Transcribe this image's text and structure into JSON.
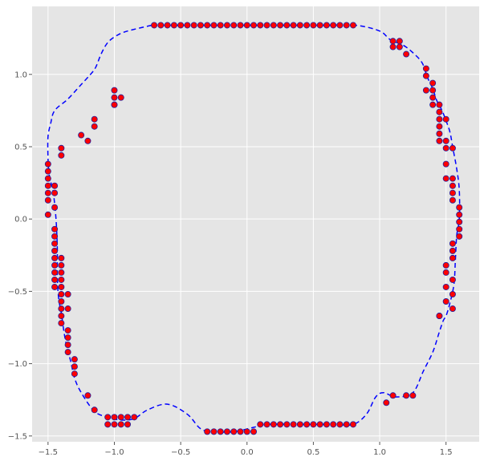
{
  "chart_data": {
    "type": "scatter",
    "title": "",
    "xlabel": "",
    "ylabel": "",
    "xlim": [
      -1.62,
      1.75
    ],
    "ylim": [
      -1.54,
      1.47
    ],
    "xticks": [
      -1.5,
      -1.0,
      -0.5,
      0.0,
      0.5,
      1.0,
      1.5
    ],
    "xtick_labels": [
      "−1.5",
      "−1.0",
      "−0.5",
      "0.0",
      "0.5",
      "1.0",
      "1.5"
    ],
    "yticks": [
      -1.5,
      -1.0,
      -0.5,
      0.0,
      0.5,
      1.0
    ],
    "ytick_labels": [
      "−1.5",
      "−1.0",
      "−0.5",
      "0.0",
      "0.5",
      "1.0"
    ],
    "grid": true,
    "legend": "none",
    "style": {
      "background": "#e5e5e5",
      "grid_color": "#ffffff",
      "point_color": "#ff0000",
      "point_edge_color": "#1f1f9f",
      "curve_color": "#0000ff",
      "curve_style": "dashed"
    },
    "series": [
      {
        "kind": "points",
        "x": [
          -0.7,
          -0.65,
          -0.6,
          -0.55,
          -0.5,
          -0.45,
          -0.4,
          -0.35,
          -0.3,
          -0.25,
          -0.2,
          -0.15,
          -0.1,
          -0.05,
          0.0,
          0.05,
          0.1,
          0.15,
          0.2,
          0.25,
          0.3,
          0.35,
          0.4,
          0.45,
          0.5,
          0.55,
          0.6,
          0.65,
          0.7,
          0.75,
          0.8,
          1.1,
          1.15,
          1.1,
          1.15,
          1.2,
          1.35,
          1.35,
          1.4,
          1.35,
          1.4,
          1.4,
          1.45,
          1.4,
          1.45,
          1.45,
          1.5,
          1.45,
          1.45,
          1.45,
          1.5,
          1.5,
          1.55,
          1.5,
          1.55,
          1.5,
          1.55,
          1.55,
          1.55,
          1.6,
          1.6,
          1.6,
          1.6,
          1.6,
          1.55,
          1.55,
          1.55,
          1.5,
          1.5,
          1.55,
          1.5,
          1.55,
          1.5,
          1.55,
          1.45,
          1.45,
          1.25,
          1.2,
          1.1,
          1.05,
          0.8,
          0.75,
          0.7,
          0.65,
          0.6,
          0.55,
          0.5,
          0.45,
          0.4,
          0.35,
          0.3,
          0.25,
          0.2,
          0.15,
          0.1,
          0.05,
          0.0,
          -0.05,
          -0.1,
          -0.15,
          -0.2,
          -0.25,
          -0.3,
          -0.85,
          -0.9,
          -0.95,
          -0.9,
          -0.95,
          -1.0,
          -1.05,
          -1.0,
          -1.05,
          -1.15,
          -1.2,
          -1.3,
          -1.3,
          -1.3,
          -1.35,
          -1.35,
          -1.35,
          -1.35,
          -1.4,
          -1.4,
          -1.35,
          -1.4,
          -1.4,
          -1.35,
          -1.4,
          -1.4,
          -1.45,
          -1.4,
          -1.45,
          -1.4,
          -1.45,
          -1.4,
          -1.45,
          -1.4,
          -1.45,
          -1.45,
          -1.45,
          -1.45,
          -1.45,
          -1.5,
          -1.45,
          -1.5,
          -1.45,
          -1.5,
          -1.45,
          -1.5,
          -1.5,
          -1.5,
          -1.5,
          -1.4,
          -1.4,
          -1.2,
          -1.25,
          -1.15,
          -1.15,
          -1.0,
          -1.0,
          -1.0,
          -0.95,
          -1.0
        ],
        "y": [
          1.34,
          1.34,
          1.34,
          1.34,
          1.34,
          1.34,
          1.34,
          1.34,
          1.34,
          1.34,
          1.34,
          1.34,
          1.34,
          1.34,
          1.34,
          1.34,
          1.34,
          1.34,
          1.34,
          1.34,
          1.34,
          1.34,
          1.34,
          1.34,
          1.34,
          1.34,
          1.34,
          1.34,
          1.34,
          1.34,
          1.34,
          1.23,
          1.23,
          1.19,
          1.19,
          1.14,
          1.04,
          0.99,
          0.94,
          0.89,
          0.89,
          0.84,
          0.79,
          0.79,
          0.74,
          0.69,
          0.69,
          0.64,
          0.59,
          0.54,
          0.54,
          0.49,
          0.49,
          0.38,
          0.28,
          0.28,
          0.23,
          0.18,
          0.13,
          0.08,
          0.03,
          -0.02,
          -0.07,
          -0.12,
          -0.17,
          -0.22,
          -0.27,
          -0.32,
          -0.37,
          -0.42,
          -0.47,
          -0.52,
          -0.57,
          -0.62,
          -0.67,
          -0.67,
          -1.22,
          -1.22,
          -1.22,
          -1.27,
          -1.42,
          -1.42,
          -1.42,
          -1.42,
          -1.42,
          -1.42,
          -1.42,
          -1.42,
          -1.42,
          -1.42,
          -1.42,
          -1.42,
          -1.42,
          -1.42,
          -1.42,
          -1.47,
          -1.47,
          -1.47,
          -1.47,
          -1.47,
          -1.47,
          -1.47,
          -1.47,
          -1.37,
          -1.37,
          -1.37,
          -1.42,
          -1.42,
          -1.37,
          -1.37,
          -1.42,
          -1.42,
          -1.32,
          -1.22,
          -1.07,
          -1.02,
          -0.97,
          -0.92,
          -0.87,
          -0.82,
          -0.77,
          -0.72,
          -0.67,
          -0.62,
          -0.62,
          -0.57,
          -0.52,
          -0.52,
          -0.47,
          -0.47,
          -0.42,
          -0.42,
          -0.37,
          -0.37,
          -0.32,
          -0.32,
          -0.27,
          -0.27,
          -0.22,
          -0.17,
          -0.12,
          -0.07,
          0.03,
          0.08,
          0.13,
          0.18,
          0.18,
          0.23,
          0.23,
          0.28,
          0.33,
          0.38,
          0.44,
          0.49,
          0.54,
          0.58,
          0.64,
          0.69,
          0.79,
          0.79,
          0.84,
          0.84,
          0.89
        ]
      },
      {
        "kind": "curve",
        "x": [
          -0.72,
          -0.9,
          -0.98,
          -1.05,
          -1.1,
          -1.14,
          -1.18,
          -1.25,
          -1.35,
          -1.45,
          -1.48,
          -1.5,
          -1.5,
          -1.49,
          -1.46,
          -1.44,
          -1.43,
          -1.43,
          -1.42,
          -1.4,
          -1.38,
          -1.36,
          -1.33,
          -1.3,
          -1.25,
          -1.15,
          -1.05,
          -0.95,
          -0.85,
          -0.75,
          -0.6,
          -0.45,
          -0.35,
          -0.25,
          -0.1,
          0.05,
          0.15,
          0.4,
          0.65,
          0.8,
          0.9,
          0.97,
          1.03,
          1.12,
          1.25,
          1.33,
          1.4,
          1.45,
          1.48,
          1.5,
          1.53,
          1.56,
          1.57,
          1.58,
          1.6,
          1.6,
          1.58,
          1.55,
          1.53,
          1.5,
          1.47,
          1.43,
          1.4,
          1.36,
          1.32,
          1.25,
          1.18,
          1.08,
          1.0,
          0.82,
          0.6,
          0.2,
          -0.2,
          -0.5,
          -0.72
        ],
        "y": [
          1.34,
          1.3,
          1.27,
          1.22,
          1.14,
          1.05,
          1.0,
          0.93,
          0.83,
          0.75,
          0.66,
          0.57,
          0.42,
          0.3,
          0.18,
          0.0,
          -0.2,
          -0.4,
          -0.55,
          -0.65,
          -0.78,
          -0.88,
          -0.98,
          -1.1,
          -1.2,
          -1.33,
          -1.37,
          -1.39,
          -1.38,
          -1.32,
          -1.28,
          -1.35,
          -1.45,
          -1.47,
          -1.47,
          -1.44,
          -1.42,
          -1.42,
          -1.42,
          -1.42,
          -1.35,
          -1.23,
          -1.2,
          -1.23,
          -1.2,
          -1.05,
          -0.92,
          -0.78,
          -0.7,
          -0.67,
          -0.58,
          -0.45,
          -0.3,
          -0.12,
          0.0,
          0.2,
          0.35,
          0.5,
          0.6,
          0.68,
          0.75,
          0.82,
          0.9,
          0.98,
          1.08,
          1.15,
          1.2,
          1.24,
          1.3,
          1.34,
          1.34,
          1.34,
          1.34,
          1.34,
          1.34
        ]
      }
    ]
  }
}
